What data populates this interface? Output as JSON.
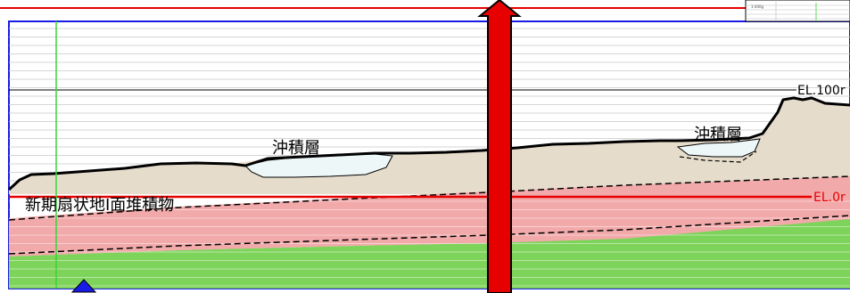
{
  "diagram": {
    "labels": {
      "alluvium_left": "沖積層",
      "alluvium_right": "沖積層",
      "fan_deposit": "新期扇状地Ⅰ面堆積物",
      "elevation_100": "EL.100r",
      "elevation_0": "EL.0r"
    },
    "inset": {
      "scale_text": "1:400g"
    },
    "colors": {
      "frame_blue": "#1a1ae6",
      "guide_red": "#e60000",
      "guide_green": "#3bd63b",
      "sediment_beige": "#e6dccb",
      "pink_layer": "#f2a9aa",
      "green_layer": "#7ed35b",
      "alluvium_fill": "#eef7f8",
      "grid_line": "#c7c7c7"
    },
    "icons": {
      "up_arrow": "up-arrow-icon",
      "bottom_triangle": "blue-triangle-icon"
    }
  }
}
